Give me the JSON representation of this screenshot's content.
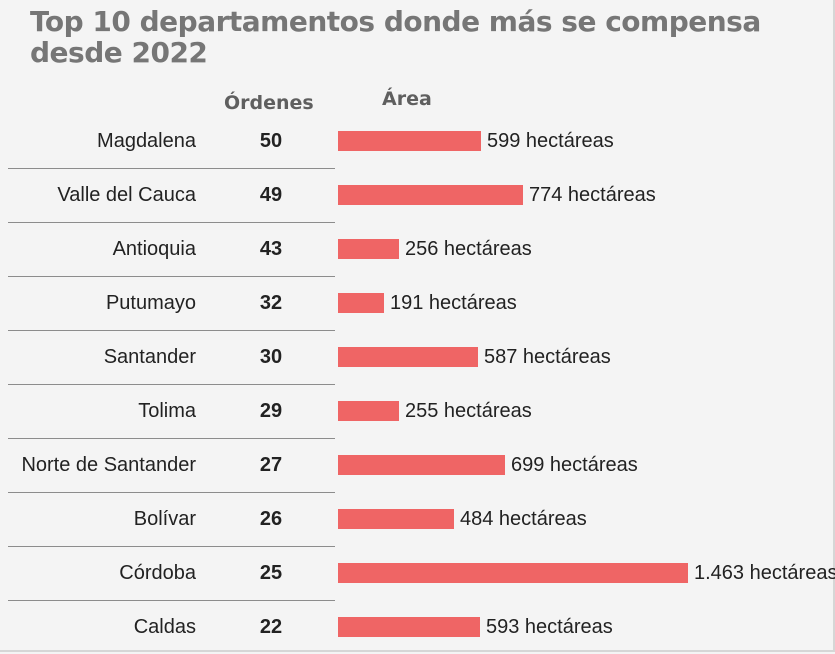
{
  "chart_data": {
    "type": "bar",
    "title": "Top 10 departamentos donde más se compensa desde 2022",
    "column_headers": {
      "orders": "Órdenes",
      "area": "Área"
    },
    "categories": [
      "Magdalena",
      "Valle del Cauca",
      "Antioquia",
      "Putumayo",
      "Santander",
      "Tolima",
      "Norte de Santander",
      "Bolívar",
      "Córdoba",
      "Caldas"
    ],
    "orders": [
      50,
      49,
      43,
      32,
      30,
      29,
      27,
      26,
      25,
      22
    ],
    "series": [
      {
        "values": [
          599,
          774,
          256,
          191,
          587,
          255,
          699,
          484,
          1463,
          593
        ]
      }
    ],
    "value_labels": [
      "599 hectáreas",
      "774 hectáreas",
      "256 hectáreas",
      "191 hectáreas",
      "587 hectáreas",
      "255 hectáreas",
      "699 hectáreas",
      "484 hectáreas",
      "1.463 hectáreas",
      "593 hectáreas"
    ],
    "bar_color": "#ef6565"
  }
}
